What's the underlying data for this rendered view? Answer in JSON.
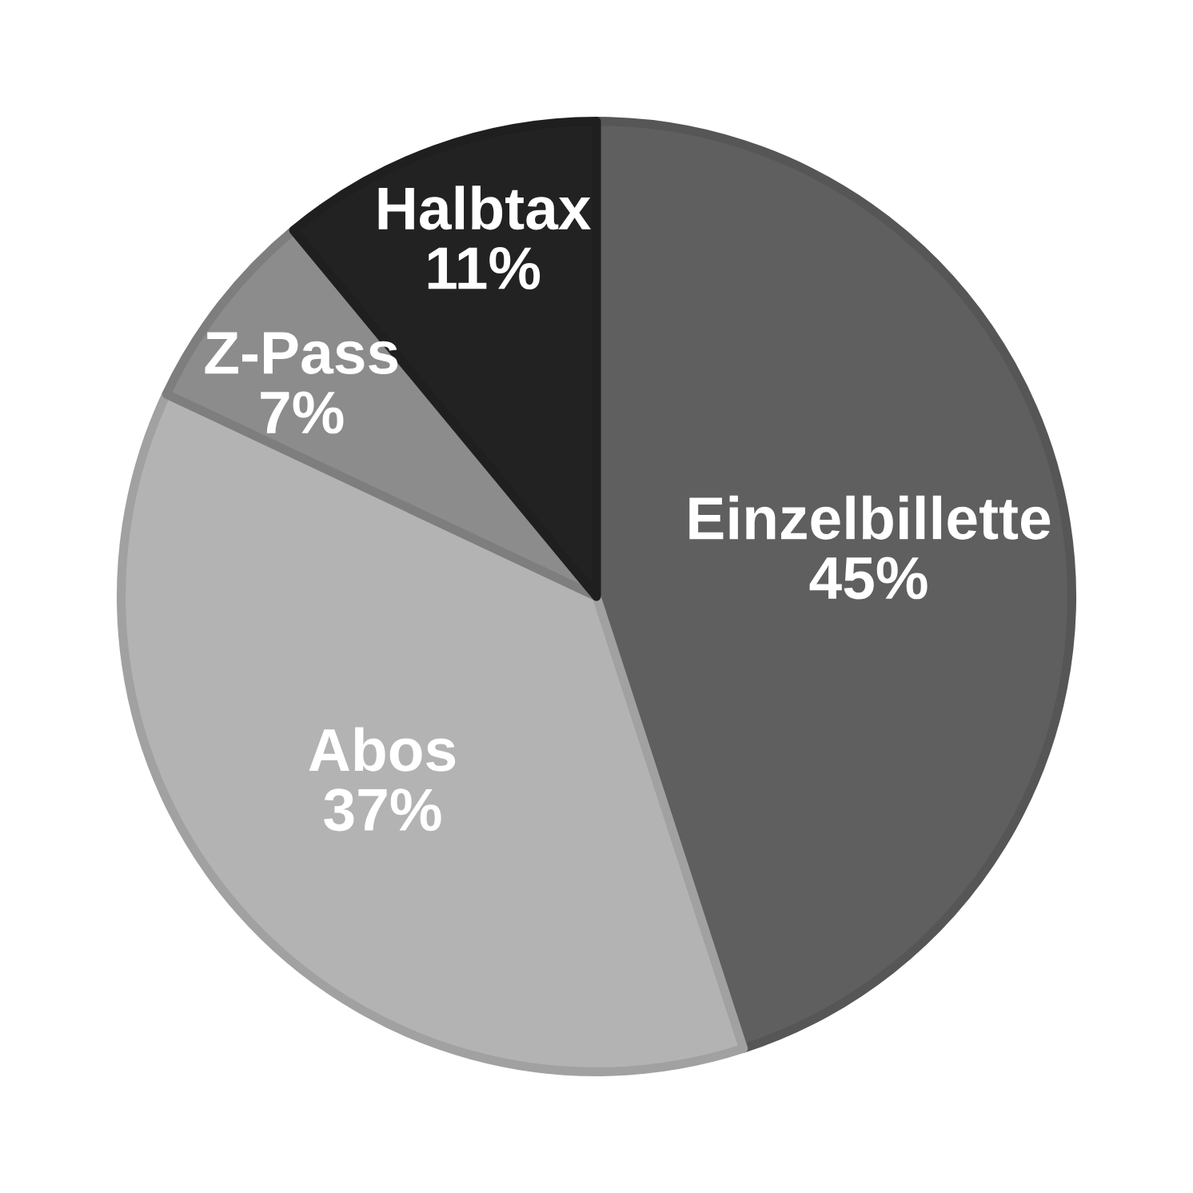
{
  "chart_data": {
    "type": "pie",
    "categories": [
      "Einzelbillette",
      "Abos",
      "Z-Pass",
      "Halbtax"
    ],
    "values": [
      45,
      37,
      7,
      11
    ],
    "colors": [
      "#5f5f5f",
      "#b3b3b3",
      "#8c8c8c",
      "#222222"
    ],
    "value_labels": [
      "45%",
      "37%",
      "7%",
      "11%"
    ]
  }
}
